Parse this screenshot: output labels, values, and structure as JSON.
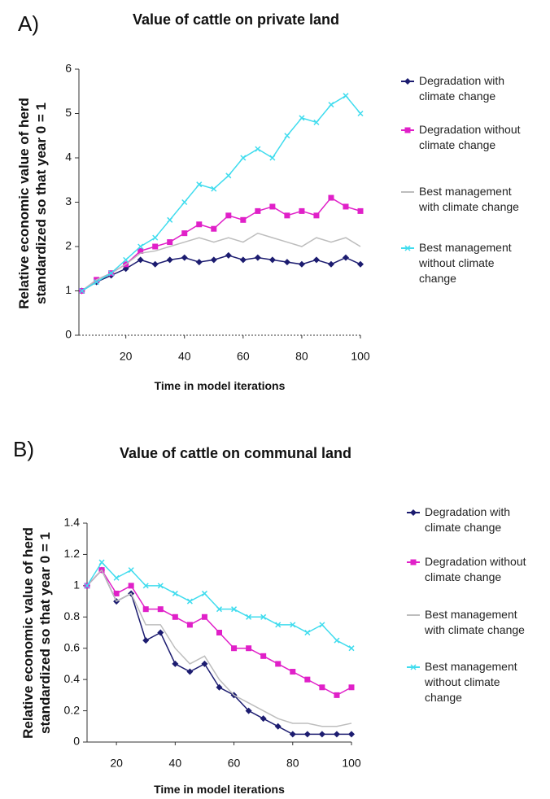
{
  "chart_data": [
    {
      "type": "line",
      "panel_label": "A)",
      "title": "Value of cattle on private land",
      "x_label": "Time in model iterations",
      "y_label": "Relative economic value of herd standardized so that year 0 = 1",
      "x": [
        5,
        10,
        15,
        20,
        25,
        30,
        35,
        40,
        45,
        50,
        55,
        60,
        65,
        70,
        75,
        80,
        85,
        90,
        95,
        100
      ],
      "xlim": [
        4,
        100
      ],
      "xticks": [
        20,
        40,
        60,
        80,
        100
      ],
      "ylim": [
        0,
        6
      ],
      "yticks": [
        0,
        1,
        2,
        3,
        4,
        5,
        6
      ],
      "series": [
        {
          "name": "Degradation with climate change",
          "color": "#1c1c70",
          "marker": "diamond",
          "values": [
            1.0,
            1.2,
            1.35,
            1.5,
            1.7,
            1.6,
            1.7,
            1.75,
            1.65,
            1.7,
            1.8,
            1.7,
            1.75,
            1.7,
            1.65,
            1.6,
            1.7,
            1.6,
            1.75,
            1.6
          ]
        },
        {
          "name": "Degradation without climate change",
          "color": "#e020c8",
          "marker": "square",
          "values": [
            1.0,
            1.25,
            1.4,
            1.6,
            1.9,
            2.0,
            2.1,
            2.3,
            2.5,
            2.4,
            2.7,
            2.6,
            2.8,
            2.9,
            2.7,
            2.8,
            2.7,
            3.1,
            2.9,
            2.8
          ]
        },
        {
          "name": "Best management with climate change",
          "color": "#bdbdbd",
          "marker": "none",
          "values": [
            1.0,
            1.25,
            1.4,
            1.6,
            1.85,
            1.9,
            2.0,
            2.1,
            2.2,
            2.1,
            2.2,
            2.1,
            2.3,
            2.2,
            2.1,
            2.0,
            2.2,
            2.1,
            2.2,
            2.0
          ]
        },
        {
          "name": "Best management without climate change",
          "color": "#3fdcee",
          "marker": "cross",
          "values": [
            1.0,
            1.2,
            1.4,
            1.7,
            2.0,
            2.2,
            2.6,
            3.0,
            3.4,
            3.3,
            3.6,
            4.0,
            4.2,
            4.0,
            4.5,
            4.9,
            4.8,
            5.2,
            5.4,
            5.0
          ]
        }
      ]
    },
    {
      "type": "line",
      "panel_label": "B)",
      "title": "Value of cattle on communal land",
      "x_label": "Time in model iterations",
      "y_label": "Relative economic value of herd standardized so that year 0 = 1",
      "x": [
        10,
        15,
        20,
        25,
        30,
        35,
        40,
        45,
        50,
        55,
        60,
        65,
        70,
        75,
        80,
        85,
        90,
        95,
        100
      ],
      "xlim": [
        10,
        100
      ],
      "xticks": [
        20,
        40,
        60,
        80,
        100
      ],
      "ylim": [
        0,
        1.4
      ],
      "yticks": [
        0,
        0.2,
        0.4,
        0.6,
        0.8,
        1,
        1.2,
        1.4
      ],
      "series": [
        {
          "name": "Degradation with climate change",
          "color": "#1c1c70",
          "marker": "diamond",
          "values": [
            1.0,
            1.1,
            0.9,
            0.95,
            0.65,
            0.7,
            0.5,
            0.45,
            0.5,
            0.35,
            0.3,
            0.2,
            0.15,
            0.1,
            0.05,
            0.05,
            0.05,
            0.05,
            0.05
          ]
        },
        {
          "name": "Degradation without climate change",
          "color": "#e020c8",
          "marker": "square",
          "values": [
            1.0,
            1.1,
            0.95,
            1.0,
            0.85,
            0.85,
            0.8,
            0.75,
            0.8,
            0.7,
            0.6,
            0.6,
            0.55,
            0.5,
            0.45,
            0.4,
            0.35,
            0.3,
            0.35
          ]
        },
        {
          "name": "Best management with climate change",
          "color": "#bdbdbd",
          "marker": "none",
          "values": [
            1.0,
            1.1,
            0.9,
            0.95,
            0.75,
            0.75,
            0.6,
            0.5,
            0.55,
            0.4,
            0.3,
            0.25,
            0.2,
            0.15,
            0.12,
            0.12,
            0.1,
            0.1,
            0.12
          ]
        },
        {
          "name": "Best management without climate change",
          "color": "#3fdcee",
          "marker": "cross",
          "values": [
            1.0,
            1.15,
            1.05,
            1.1,
            1.0,
            1.0,
            0.95,
            0.9,
            0.95,
            0.85,
            0.85,
            0.8,
            0.8,
            0.75,
            0.75,
            0.7,
            0.75,
            0.65,
            0.6
          ]
        }
      ]
    }
  ]
}
